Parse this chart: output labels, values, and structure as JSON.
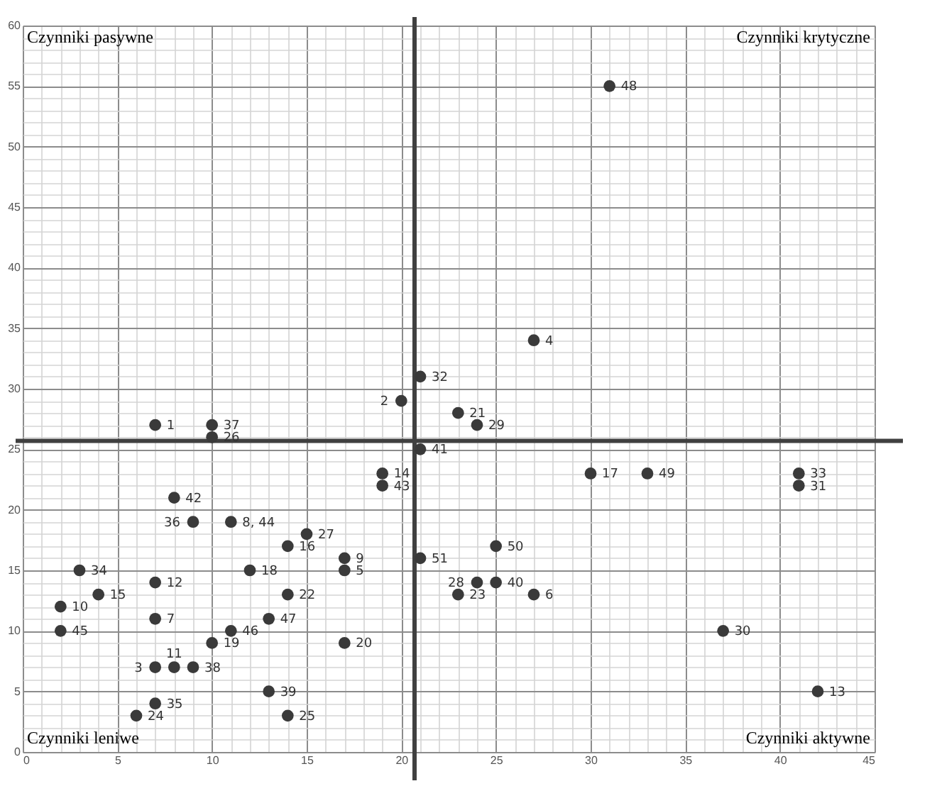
{
  "chart_data": {
    "type": "scatter",
    "x": [
      31,
      27,
      21,
      20,
      23,
      24,
      7,
      10,
      10,
      21,
      19,
      19,
      30,
      33,
      41,
      41,
      8,
      9,
      11,
      15,
      14,
      17,
      17,
      21,
      25,
      3,
      12,
      7,
      4,
      14,
      24,
      25,
      23,
      27,
      2,
      7,
      13,
      2,
      11,
      37,
      10,
      17,
      7,
      8,
      9,
      13,
      42,
      7,
      6,
      14
    ],
    "values": [
      55,
      34,
      31,
      29,
      28,
      27,
      27,
      27,
      26,
      25,
      23,
      22,
      23,
      23,
      23,
      22,
      21,
      19,
      19,
      18,
      17,
      16,
      15,
      16,
      17,
      15,
      15,
      14,
      13,
      13,
      14,
      14,
      13,
      13,
      12,
      11,
      11,
      10,
      10,
      10,
      9,
      9,
      7,
      7,
      7,
      5,
      5,
      4,
      3,
      3
    ],
    "color": "#3a3a3a",
    "marker": "circle",
    "xlim": [
      0,
      45
    ],
    "xticks": [
      0,
      5,
      10,
      15,
      20,
      25,
      30,
      35,
      40,
      45
    ],
    "ylim": [
      0,
      60
    ],
    "yticks": [
      0,
      5,
      10,
      15,
      20,
      25,
      30,
      35,
      40,
      45,
      50,
      55,
      60
    ],
    "grid": true,
    "ref_lines": [
      {
        "axis": "x",
        "value": 20.7,
        "label": null,
        "color": "#404040"
      },
      {
        "axis": "y",
        "value": 25.7,
        "label": null,
        "color": "#404040"
      }
    ],
    "annotations": [
      "Czynniki pasywne",
      "Czynniki krytyczne",
      "Czynniki leniwe",
      "Czynniki aktywne",
      {
        "text": "48",
        "x": 31,
        "y": 55
      },
      {
        "text": "4",
        "x": 27,
        "y": 34
      },
      {
        "text": "32",
        "x": 21,
        "y": 31
      },
      {
        "text": "2",
        "x": 20,
        "y": 29
      },
      {
        "text": "21",
        "x": 23,
        "y": 28
      },
      {
        "text": "29",
        "x": 24,
        "y": 27
      },
      {
        "text": "1",
        "x": 7,
        "y": 27
      },
      {
        "text": "37",
        "x": 10,
        "y": 27
      },
      {
        "text": "26",
        "x": 10,
        "y": 26
      },
      {
        "text": "41",
        "x": 21,
        "y": 25
      },
      {
        "text": "14",
        "x": 19,
        "y": 23
      },
      {
        "text": "43",
        "x": 19,
        "y": 22
      },
      {
        "text": "17",
        "x": 30,
        "y": 23
      },
      {
        "text": "49",
        "x": 33,
        "y": 23
      },
      {
        "text": "33",
        "x": 41,
        "y": 23
      },
      {
        "text": "31",
        "x": 41,
        "y": 22
      },
      {
        "text": "42",
        "x": 8,
        "y": 21
      },
      {
        "text": "36",
        "x": 9,
        "y": 19
      },
      {
        "text": "8, 44",
        "x": 11,
        "y": 19
      },
      {
        "text": "27",
        "x": 15,
        "y": 18
      },
      {
        "text": "16",
        "x": 14,
        "y": 17
      },
      {
        "text": "9",
        "x": 17,
        "y": 16
      },
      {
        "text": "5",
        "x": 17,
        "y": 15
      },
      {
        "text": "51",
        "x": 21,
        "y": 16
      },
      {
        "text": "50",
        "x": 25,
        "y": 17
      },
      {
        "text": "34",
        "x": 3,
        "y": 15
      },
      {
        "text": "18",
        "x": 12,
        "y": 15
      },
      {
        "text": "12",
        "x": 7,
        "y": 14
      },
      {
        "text": "15",
        "x": 4,
        "y": 13
      },
      {
        "text": "22",
        "x": 14,
        "y": 13
      },
      {
        "text": "28",
        "x": 24,
        "y": 14
      },
      {
        "text": "40",
        "x": 25,
        "y": 14
      },
      {
        "text": "23",
        "x": 23,
        "y": 13
      },
      {
        "text": "6",
        "x": 27,
        "y": 13
      },
      {
        "text": "10",
        "x": 2,
        "y": 12
      },
      {
        "text": "7",
        "x": 7,
        "y": 11
      },
      {
        "text": "47",
        "x": 13,
        "y": 11
      },
      {
        "text": "45",
        "x": 2,
        "y": 10
      },
      {
        "text": "46",
        "x": 11,
        "y": 10
      },
      {
        "text": "30",
        "x": 37,
        "y": 10
      },
      {
        "text": "19",
        "x": 10,
        "y": 9
      },
      {
        "text": "20",
        "x": 17,
        "y": 9
      },
      {
        "text": "3",
        "x": 7,
        "y": 7
      },
      {
        "text": "11",
        "x": 8,
        "y": 7
      },
      {
        "text": "38",
        "x": 9,
        "y": 7
      },
      {
        "text": "39",
        "x": 13,
        "y": 5
      },
      {
        "text": "13",
        "x": 42,
        "y": 5
      },
      {
        "text": "35",
        "x": 7,
        "y": 4
      },
      {
        "text": "24",
        "x": 6,
        "y": 3
      },
      {
        "text": "25",
        "x": 14,
        "y": 3
      }
    ]
  }
}
